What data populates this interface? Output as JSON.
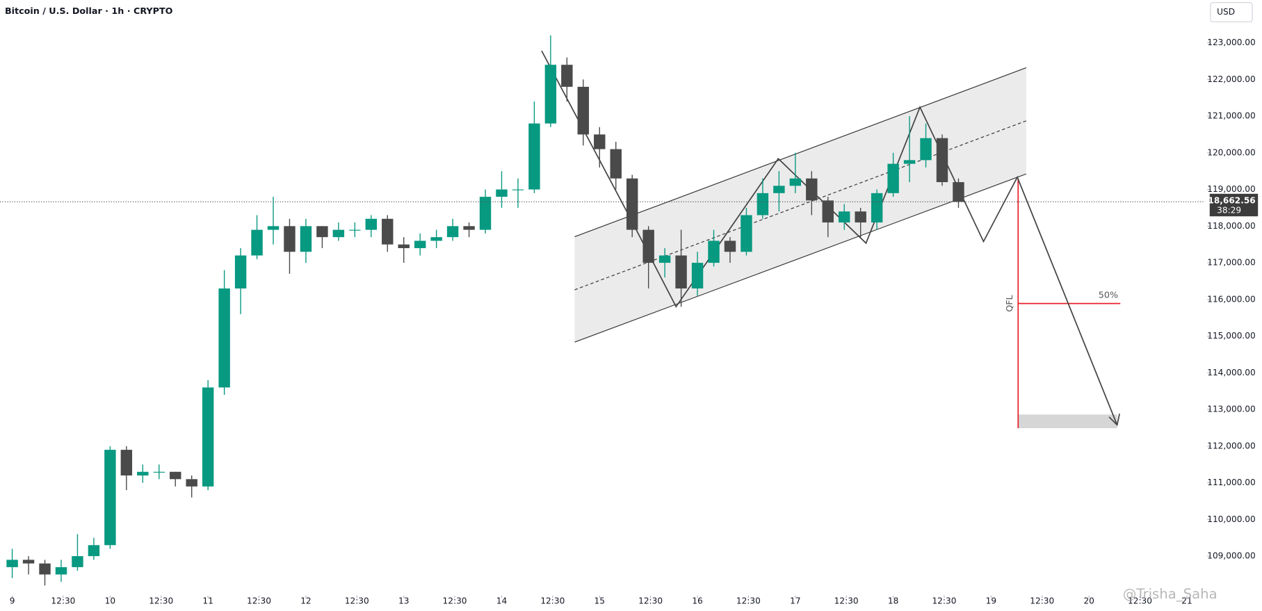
{
  "chart_data": {
    "type": "candlestick",
    "title": "Bitcoin / U.S. Dollar · 1h · CRYPTO",
    "currency": "USD",
    "last_price_label": "118,662.56",
    "countdown": "38:29",
    "annotations": [
      "QFL",
      "50%"
    ],
    "watermark": "@Trisha_Saha",
    "up_color": "#089981",
    "down_color": "#4a4a4a",
    "x": [
      0,
      4,
      8,
      12,
      16,
      20,
      24,
      28,
      32,
      36,
      40,
      44,
      48,
      52,
      56,
      60,
      64,
      68,
      72,
      76,
      80,
      84,
      88,
      92,
      96,
      100,
      104,
      108,
      112,
      116,
      120,
      124,
      128,
      132,
      136,
      140,
      144,
      148,
      152,
      156,
      160,
      164,
      168,
      172,
      176,
      180,
      184,
      188,
      192,
      196,
      200,
      204,
      208,
      212,
      216,
      220,
      224,
      228,
      232
    ],
    "open": [
      108700,
      108900,
      108800,
      108500,
      108700,
      109000,
      109300,
      111900,
      111200,
      111300,
      111300,
      111100,
      110900,
      113600,
      116300,
      117200,
      117900,
      118000,
      117300,
      118000,
      117700,
      117900,
      117900,
      118200,
      117500,
      117400,
      117600,
      117700,
      118000,
      117900,
      118800,
      119000,
      119000,
      120800,
      122400,
      121800,
      120500,
      120100,
      119300,
      117900,
      117000,
      117200,
      116300,
      117000,
      117600,
      117300,
      118300,
      118900,
      119100,
      119300,
      118700,
      118100,
      118400,
      118100,
      118900,
      119700,
      119800,
      120400,
      119200
    ],
    "high": [
      109200,
      109000,
      108900,
      108900,
      109600,
      109500,
      112000,
      112000,
      111500,
      111500,
      111300,
      111200,
      113800,
      116800,
      117400,
      118300,
      118800,
      118200,
      118200,
      118000,
      118100,
      118100,
      118300,
      118300,
      117700,
      117800,
      117900,
      118200,
      118100,
      119000,
      119500,
      119300,
      121400,
      123200,
      122600,
      122000,
      120700,
      120300,
      119400,
      118000,
      117400,
      117900,
      117300,
      117900,
      117700,
      118500,
      119300,
      119500,
      120000,
      119500,
      118800,
      118600,
      118500,
      119000,
      120000,
      121000,
      120800,
      120500,
      119300
    ],
    "low": [
      108400,
      108500,
      108200,
      108300,
      108600,
      108900,
      109200,
      110800,
      111000,
      111100,
      110900,
      110600,
      110800,
      113400,
      115600,
      117100,
      117500,
      116700,
      117000,
      117400,
      117600,
      117700,
      117700,
      117300,
      117000,
      117200,
      117400,
      117600,
      117700,
      117800,
      118500,
      118500,
      118900,
      120700,
      121400,
      120200,
      119600,
      119000,
      117700,
      116300,
      116600,
      115800,
      116100,
      116900,
      117000,
      117200,
      118200,
      118400,
      118900,
      118300,
      117700,
      117900,
      117700,
      117900,
      118800,
      119200,
      119600,
      119100,
      118500
    ],
    "close": [
      108900,
      108800,
      108500,
      108700,
      109000,
      109300,
      111900,
      111200,
      111300,
      111300,
      111100,
      110900,
      113600,
      116300,
      117200,
      117900,
      118000,
      117300,
      118000,
      117700,
      117900,
      117900,
      118200,
      117500,
      117400,
      117600,
      117700,
      118000,
      117900,
      118800,
      119000,
      119000,
      120800,
      122400,
      121800,
      120500,
      120100,
      119300,
      117900,
      117000,
      117200,
      116300,
      117000,
      117600,
      117300,
      118300,
      118900,
      119100,
      119300,
      118700,
      118100,
      118400,
      118100,
      118900,
      119700,
      119800,
      120400,
      119200,
      118662.56
    ],
    "xlim": [
      -3,
      293
    ],
    "ylim": [
      107925,
      124163
    ],
    "xticks": [
      {
        "value": 0,
        "label": "9"
      },
      {
        "value": 12.5,
        "label": "12:30"
      },
      {
        "value": 24,
        "label": "10"
      },
      {
        "value": 36.5,
        "label": "12:30"
      },
      {
        "value": 48,
        "label": "11"
      },
      {
        "value": 60.5,
        "label": "12:30"
      },
      {
        "value": 72,
        "label": "12"
      },
      {
        "value": 84.5,
        "label": "12:30"
      },
      {
        "value": 96,
        "label": "13"
      },
      {
        "value": 108.5,
        "label": "12:30"
      },
      {
        "value": 120,
        "label": "14"
      },
      {
        "value": 132.5,
        "label": "12:30"
      },
      {
        "value": 144,
        "label": "15"
      },
      {
        "value": 156.5,
        "label": "12:30"
      },
      {
        "value": 168,
        "label": "16"
      },
      {
        "value": 180.5,
        "label": "12:30"
      },
      {
        "value": 192,
        "label": "17"
      },
      {
        "value": 204.5,
        "label": "12:30"
      },
      {
        "value": 216,
        "label": "18"
      },
      {
        "value": 228.5,
        "label": "12:30"
      },
      {
        "value": 240,
        "label": "19"
      },
      {
        "value": 252.5,
        "label": "12:30"
      },
      {
        "value": 264,
        "label": "20"
      },
      {
        "value": 276.5,
        "label": "12:30"
      },
      {
        "value": 288,
        "label": "21"
      }
    ],
    "yticks": [
      {
        "value": 109000,
        "label": "109,000.00"
      },
      {
        "value": 110000,
        "label": "110,000.00"
      },
      {
        "value": 111000,
        "label": "111,000.00"
      },
      {
        "value": 112000,
        "label": "112,000.00"
      },
      {
        "value": 113000,
        "label": "113,000.00"
      },
      {
        "value": 114000,
        "label": "114,000.00"
      },
      {
        "value": 115000,
        "label": "115,000.00"
      },
      {
        "value": 116000,
        "label": "116,000.00"
      },
      {
        "value": 117000,
        "label": "117,000.00"
      },
      {
        "value": 118000,
        "label": "118,000.00"
      },
      {
        "value": 119000,
        "label": "119,000.00"
      },
      {
        "value": 120000,
        "label": "120,000.00"
      },
      {
        "value": 121000,
        "label": "121,000.00"
      },
      {
        "value": 122000,
        "label": "122,000.00"
      },
      {
        "value": 123000,
        "label": "123,000.00"
      }
    ]
  }
}
